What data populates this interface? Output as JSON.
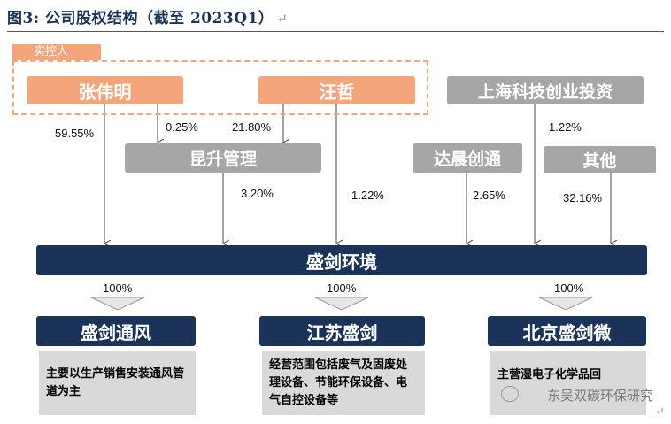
{
  "title": "图3:  公司股权结构（截至 2023Q1）",
  "title_mark": "↵",
  "controller_label": "实控人",
  "shareholders": {
    "zhang": "张伟明",
    "wang": "汪哲",
    "shanghai": "上海科技创业投资",
    "kunsheng": "昆升管理",
    "dachen": "达晨创通",
    "others": "其他"
  },
  "percents": {
    "zhang_direct": "59.55%",
    "zhang_to_kunsheng": "0.25%",
    "wang_to_kunsheng": "21.80%",
    "kunsheng": "3.20%",
    "wang_direct": "1.22%",
    "dachen": "2.65%",
    "shanghai": "1.22%",
    "others": "32.16%",
    "sub1": "100%",
    "sub2": "100%",
    "sub3": "100%"
  },
  "company": "盛剑环境",
  "subsidiaries": [
    {
      "name": "盛剑通风",
      "desc": "主要以生产销售安装通风管道为主"
    },
    {
      "name": "江苏盛剑",
      "desc": "经营范围包括废气及固废处理设备、节能环保设备、电气自控设备等"
    },
    {
      "name": "北京盛剑微",
      "desc": "主营湿电子化学品回"
    }
  ],
  "watermark": "东吴双碳环保研究",
  "return_mark": "↵",
  "colors": {
    "orange": "#f4a57b",
    "grey": "#a6a6a6",
    "navy": "#1b3358",
    "desc_bg": "#d9d9d9"
  }
}
